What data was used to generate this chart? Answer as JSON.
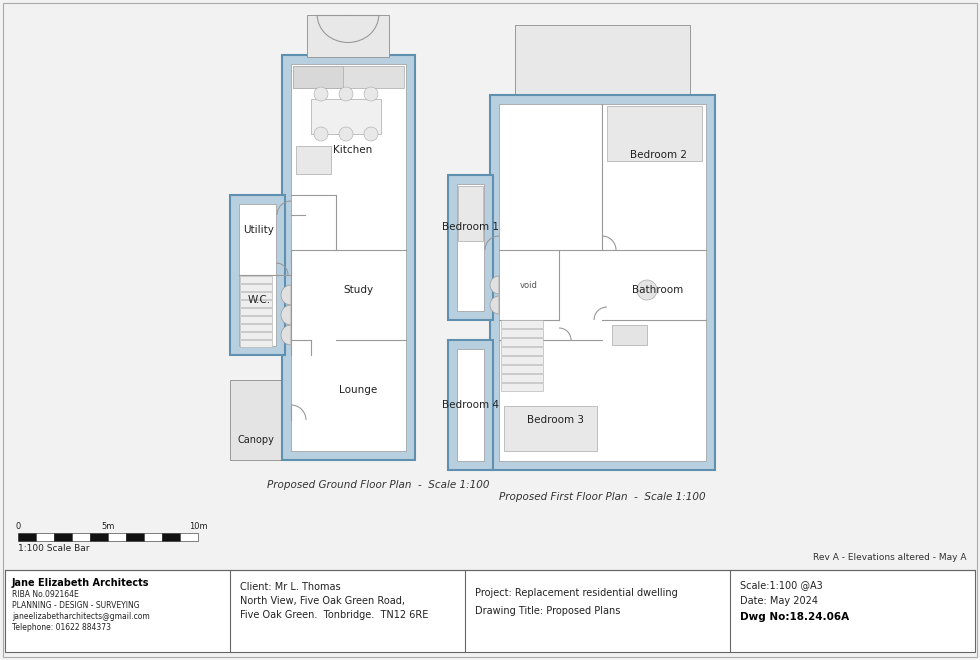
{
  "bg_color": "#f2f2f2",
  "wall_fill": "#b8cfe0",
  "wall_edge": "#6090b0",
  "room_fill": "#ffffff",
  "inner_edge": "#999999",
  "ground_label": "Proposed Ground Floor Plan  -  Scale 1:100",
  "first_label": "Proposed First Floor Plan  -  Scale 1:100",
  "footer_col1_bold": "Jane Elizabeth Architects",
  "footer_col1_lines": [
    "RIBA No.092164E",
    "PLANNING - DESIGN - SURVEYING",
    "janeelizabetharchitects@gmail.com",
    "Telephone: 01622 884373"
  ],
  "footer_col2_lines": [
    "Client: Mr L. Thomas",
    "North View, Five Oak Green Road,",
    "Five Oak Green.  Tonbridge.  TN12 6RE"
  ],
  "footer_col3_lines": [
    "Project: Replacement residential dwelling",
    "Drawing Title: Proposed Plans"
  ],
  "footer_col4_lines": [
    "Scale:1:100 @A3",
    "Date: May 2024",
    "Dwg No:18.24.06A"
  ],
  "rev_note": "Rev A - Elevations altered - May A",
  "scale_bar_label": "1:100 Scale Bar"
}
